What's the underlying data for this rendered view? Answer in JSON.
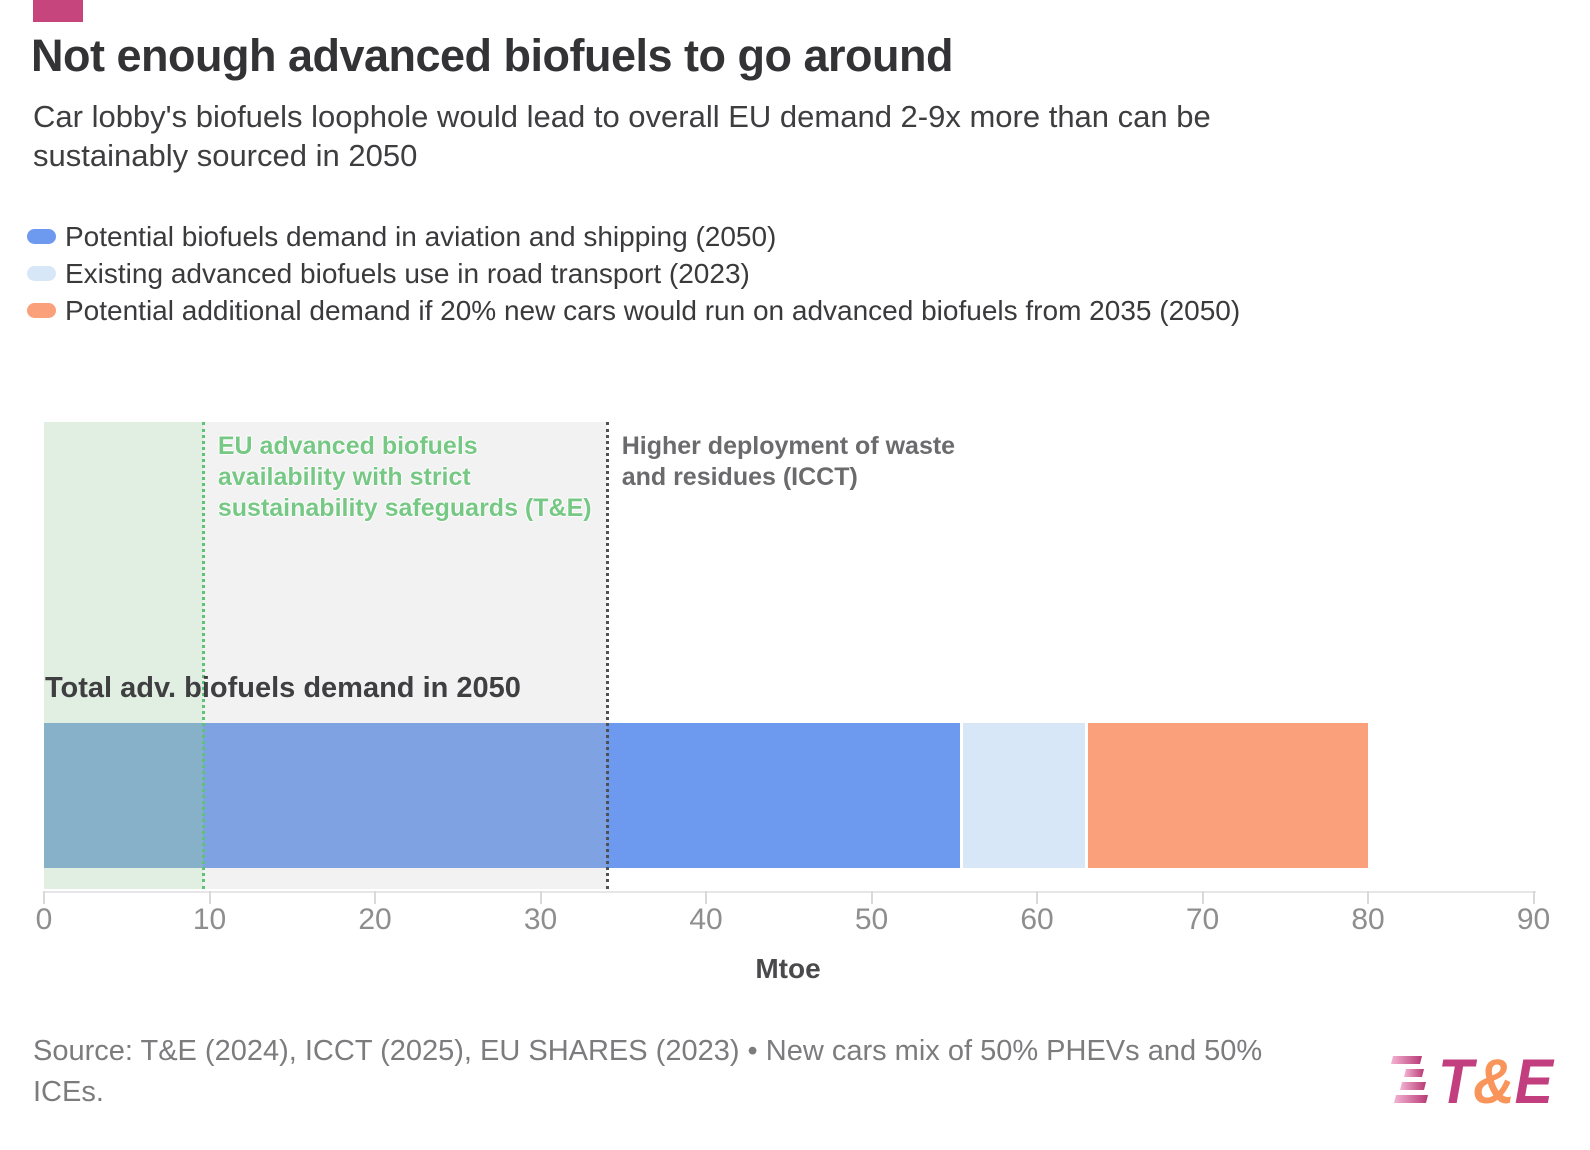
{
  "accent_color": "#c6457c",
  "header": {
    "title": "Not enough advanced biofuels to go around",
    "subtitle_lines": [
      "Car lobby's biofuels loophole would lead to overall EU demand 2-9x more than can be",
      "sustainably sourced in 2050"
    ]
  },
  "chart_data": {
    "type": "bar",
    "variant": "horizontal-stacked",
    "categories": [
      "Total adv. biofuels demand in 2050"
    ],
    "bar_label": "Total adv. biofuels demand in 2050",
    "series": [
      {
        "name": "Potential biofuels demand in aviation and shipping (2050)",
        "color": "#6d99ee",
        "value": 55.5
      },
      {
        "name": "Existing advanced biofuels use in road transport (2023)",
        "color": "#d7e7f8",
        "value": 7.6
      },
      {
        "name": "Potential additional demand if 20% new cars would run on advanced biofuels from 2035 (2050)",
        "color": "#faa07a",
        "value": 16.9
      }
    ],
    "total": 80,
    "xlabel": "Mtoe",
    "xlim": [
      0,
      90
    ],
    "ticks": [
      0,
      10,
      20,
      30,
      40,
      50,
      60,
      70,
      80,
      90
    ],
    "grid": false,
    "legend_position": "top-left",
    "reference_regions": [
      {
        "id": "te-sustainable-availability",
        "from": 0,
        "to": 9.6,
        "fill": "#e1efe3",
        "line_color": "#5fc274",
        "text_color": "#76c884",
        "bar_tint": "rgba(147,201,160,0.40)",
        "label_lines": [
          "EU advanced biofuels",
          "availability with strict",
          "sustainability safeguards (T&E)"
        ]
      },
      {
        "id": "icct-waste-residues",
        "from": 0,
        "to": 34,
        "fill": "#f2f2f3",
        "line_color": "#515153",
        "text_color": "#6b6b6d",
        "bar_tint": "rgba(185,190,196,0.25)",
        "label_lines": [
          "Higher deployment of waste",
          "and residues (ICCT)"
        ]
      }
    ]
  },
  "footer": {
    "source_lines": [
      "Source: T&E (2024), ICCT (2025), EU SHARES (2023) • New cars mix of 50% PHEVs and 50%",
      "ICEs."
    ],
    "logo": {
      "t": "T",
      "amp": "&",
      "e": "E",
      "magenta": "#c23e7e",
      "orange": "#f9945a"
    }
  }
}
